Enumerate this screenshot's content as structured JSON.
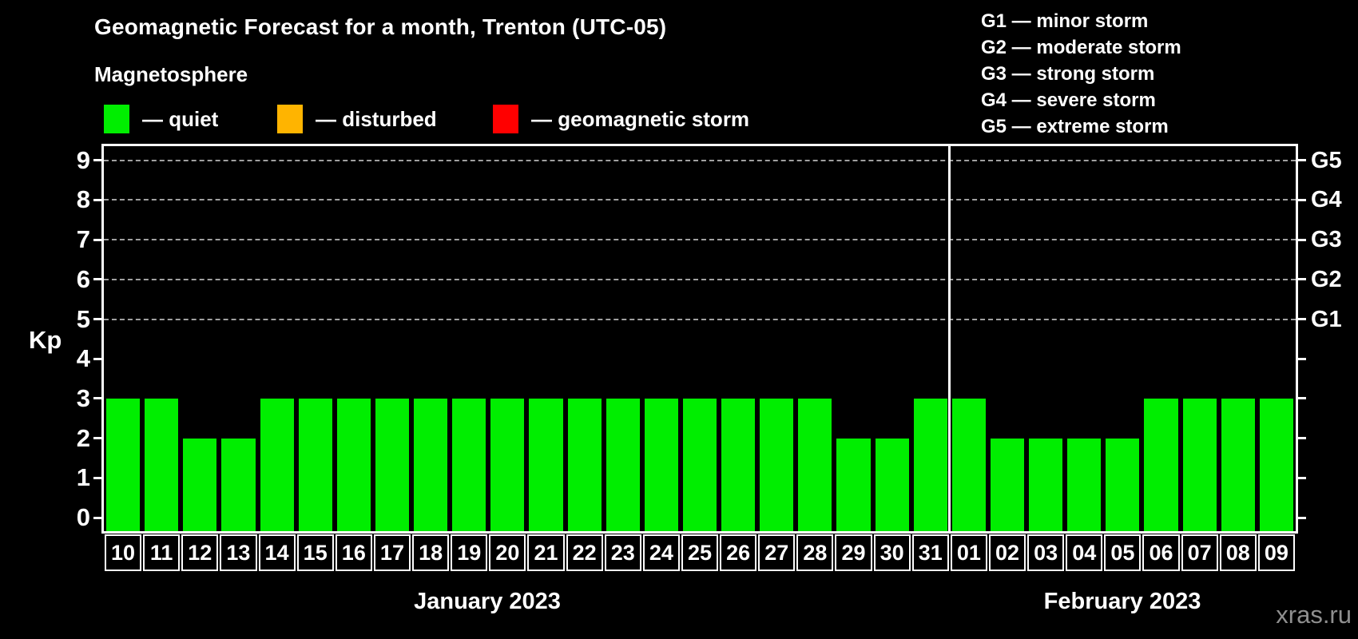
{
  "header": {
    "title": "Geomagnetic Forecast for a month, Trenton (UTC-05)",
    "subtitle": "Magnetosphere",
    "legend": [
      {
        "name": "quiet",
        "label": "— quiet",
        "color": "#00ee00"
      },
      {
        "name": "disturbed",
        "label": "— disturbed",
        "color": "#ffb400"
      },
      {
        "name": "geomagnetic-storm",
        "label": "— geomagnetic storm",
        "color": "#ff0000"
      }
    ],
    "g_legend": [
      "G1 — minor storm",
      "G2 — moderate storm",
      "G3 — strong storm",
      "G4 — severe storm",
      "G5 — extreme storm"
    ]
  },
  "chart_data": {
    "type": "bar",
    "title": "Geomagnetic Forecast for a month, Trenton (UTC-05)",
    "xlabel": "",
    "ylabel": "Kp",
    "ylim": [
      0,
      9
    ],
    "yticks": [
      0,
      1,
      2,
      3,
      4,
      5,
      6,
      7,
      8,
      9
    ],
    "grid_values": [
      5,
      6,
      7,
      8,
      9
    ],
    "grid_style": "dashed",
    "legend_position": "top",
    "right_axis": {
      "labels": [
        "G1",
        "G2",
        "G3",
        "G4",
        "G5"
      ],
      "values": [
        5,
        6,
        7,
        8,
        9
      ]
    },
    "categories": [
      "10",
      "11",
      "12",
      "13",
      "14",
      "15",
      "16",
      "17",
      "18",
      "19",
      "20",
      "21",
      "22",
      "23",
      "24",
      "25",
      "26",
      "27",
      "28",
      "29",
      "30",
      "31",
      "01",
      "02",
      "03",
      "04",
      "05",
      "06",
      "07",
      "08",
      "09"
    ],
    "values": [
      3,
      3,
      2,
      2,
      3,
      3,
      3,
      3,
      3,
      3,
      3,
      3,
      3,
      3,
      3,
      3,
      3,
      3,
      3,
      2,
      2,
      3,
      3,
      2,
      2,
      2,
      2,
      3,
      3,
      3,
      3
    ],
    "series_name": "quiet",
    "bar_color": "#00ee00",
    "months": [
      {
        "label": "January 2023",
        "start": 0,
        "count": 22
      },
      {
        "label": "February 2023",
        "start": 22,
        "count": 9
      }
    ]
  },
  "watermark": "xras.ru",
  "colors": {
    "background": "#000000",
    "text": "#ffffff",
    "frame": "#ffffff",
    "gridline": "#a0a0a0",
    "watermark": "#8f8f8f"
  }
}
